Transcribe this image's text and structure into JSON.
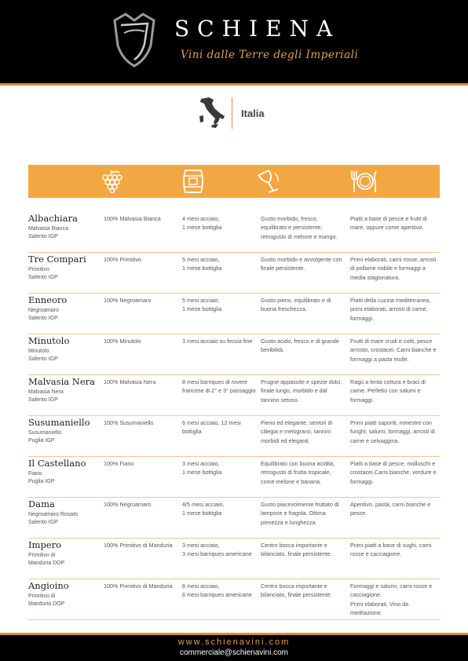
{
  "header": {
    "brand": "SCHIENA",
    "tagline": "Vini dalle Terre degli Imperiali",
    "logo_icon": "shield-logo-icon"
  },
  "country": {
    "name": "Italia",
    "icon": "italy-map-icon"
  },
  "column_icons": [
    "grapes-icon",
    "barrel-icon",
    "wine-glass-icon",
    "plate-cutlery-icon"
  ],
  "colors": {
    "accent": "#f3a742",
    "rule": "#d9912d",
    "header_bg": "#000000"
  },
  "wines": [
    {
      "name": "Albachiara",
      "sub": "Malvasia Bianca\nSalento IGP",
      "grape": "100% Malvasia Bianca",
      "aging": "4 mesi acciaio,\n1 mese bottiglia",
      "taste": "Gusto morbido, fresco, equilibrato e persistente; retrogusto di melone e mango.",
      "pairing": "Piatti a base di pesce e frutti di mare, oppure come aperitivo."
    },
    {
      "name": "Tre Compari",
      "sub": "Primitivo\nSalento IGP",
      "grape": "100% Primitivo",
      "aging": "5 mesi acciaio,\n1 mese bottiglia",
      "taste": "Gusto morbido e avvolgente con finale persistente.",
      "pairing": "Primi elaborati, carni rosse, arrosti di pollame nobile e formaggi a media stagionatura."
    },
    {
      "name": "Enneoro",
      "sub": "Negroamaro\nSalento IGP",
      "grape": "100% Negroamaro",
      "aging": "5 mesi acciaio,\n1 mese bottiglia",
      "taste": "Gusto pieno, equilibrato e di buona freschezza.",
      "pairing": "Piatti della cucina mediterranea, primi elaborati, arrosti di carne, formaggi."
    },
    {
      "name": "Minutolo",
      "sub": "Minutolo\nSalento IGP",
      "grape": "100% Minutolo",
      "aging": "3 mesi acciaio su feccia fine",
      "taste": "Gusto acido, fresco e di grande bevibilità.",
      "pairing": "Frutti di mare crudi e cotti, pesce arrosto, crostacei. Carni bianche e formaggi a pasta molle."
    },
    {
      "name": "Malvasia Nera",
      "sub": "Malvasia Nera\nSalento IGP",
      "grape": "100% Malvasia Nera",
      "aging": "8 mesi barriques di rovere francese di 2° e 3° passaggio",
      "taste": "Prugne appassite e spezie dolci, finale lungo, morbido e dal tannino setoso.",
      "pairing": "Ragù a lenta cottura e braci di carne. Perfetto con salumi e formaggi."
    },
    {
      "name": "Susumaniello",
      "sub": "Susumaniello\nPuglia IGP",
      "grape": "100% Susumaniello",
      "aging": "6 mesi acciaio, 12 mesi bottiglia",
      "taste": "Pieno ed elegante, sentori di ciliegia e melograno, tannini morbidi ed eleganti.",
      "pairing": "Primi piatti saporiti, minestre con funghi; salumi, formaggi, arrosti di carne e selvaggina."
    },
    {
      "name": "Il Castellano",
      "sub": "Fiano\nPuglia IGP",
      "grape": "100% Fiano",
      "aging": "3 mesi acciaio,\n1 mese bottiglia",
      "taste": "Equilibrato con buona acidità, retrogusto di frutta tropicale, come melone e banana.",
      "pairing": "Piatti a base di pesce, molluschi e crostacei.Carni bianche, verdure e formaggi."
    },
    {
      "name": "Dama",
      "sub": "Negroamaro Rosato\nSalento IGP",
      "grape": "100% Negroamaro",
      "aging": "4/5 mesi acciaio,\n1 mese bottiglia",
      "taste": "Gusto piacevolmente fruttato di lampone e fragola. Ottima pienezza e lunghezza.",
      "pairing": "Aperitivo, pasta, carni bianche e pesce."
    },
    {
      "name": "Impero",
      "sub": "Primitivo di\nManduria DOP",
      "grape": "100% Primitivo di Manduria",
      "aging": "3 mesi acciaio,\n3 mesi barriques americane",
      "taste": "Centro bocca importante e bilanciato, finale persistente.",
      "pairing": "Primi piatti a base di sughi, carni rosse e cacciagione."
    },
    {
      "name": "Angioino",
      "sub": "Primitivo di\nManduria DOP",
      "grape": "100% Primitivo di Manduria",
      "aging": "6 mesi acciaio,\n6 mesi barriques americane",
      "taste": "Centro bocca importante e bilanciato, finale persistente.",
      "pairing": "Formaggi e salumi, carni rosse e cacciagione.\nPrimi elaborati. Vino da meditazione."
    }
  ],
  "footer": {
    "website": "www.schienavini.com",
    "email": "commerciale@schienavini.com"
  }
}
